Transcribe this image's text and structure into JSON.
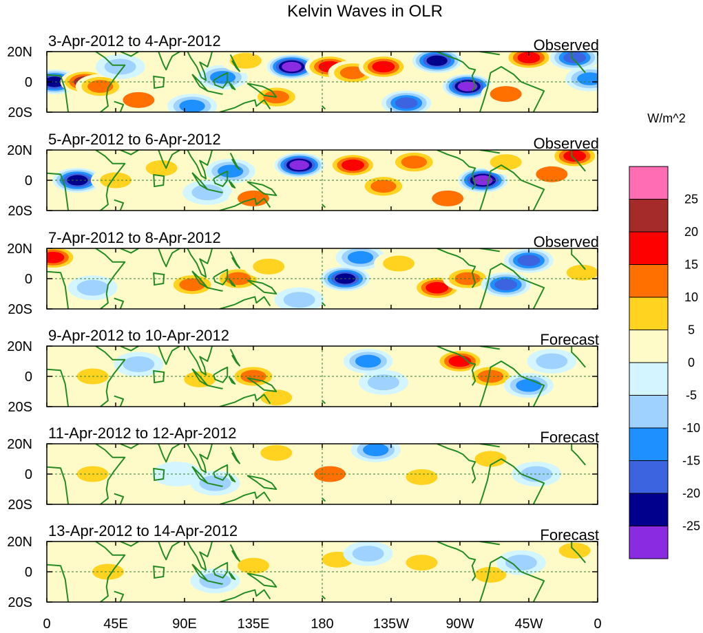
{
  "chart_data": {
    "type": "heatmap",
    "title": "Kelvin Waves in OLR",
    "units_label": "W/m^2",
    "colorbar": {
      "tick_labels": [
        "25",
        "20",
        "15",
        "10",
        "5",
        "0",
        "-5",
        "-10",
        "-15",
        "-20",
        "-25"
      ],
      "colors_top_to_bottom": [
        "#ff6eb4",
        "#a52a2a",
        "#ff0000",
        "#ff7000",
        "#ffd31f",
        "#fffbc8",
        "#d2f5ff",
        "#a0d2ff",
        "#1e90ff",
        "#3c64e1",
        "#00008c",
        "#8a2be2"
      ]
    },
    "x_ticks": [
      "0",
      "45E",
      "90E",
      "135E",
      "180",
      "135W",
      "90W",
      "45W",
      "0"
    ],
    "y_ticks": [
      "20N",
      "0",
      "20S"
    ],
    "longitude_range": [
      0,
      360
    ],
    "latitude_range": [
      -20,
      20
    ],
    "coast_color": "#228b22",
    "panels": [
      {
        "date_range": "3-Apr-2012 to 4-Apr-2012",
        "label": "Observed",
        "features": [
          {
            "lon": 5,
            "lat": 0,
            "value": -22
          },
          {
            "lon": 25,
            "lat": 0,
            "value": 20
          },
          {
            "lon": 35,
            "lat": -3,
            "value": 12
          },
          {
            "lon": 48,
            "lat": 10,
            "value": -8
          },
          {
            "lon": 60,
            "lat": -12,
            "value": 10
          },
          {
            "lon": 95,
            "lat": -16,
            "value": -12
          },
          {
            "lon": 115,
            "lat": 3,
            "value": -12
          },
          {
            "lon": 130,
            "lat": 14,
            "value": 8
          },
          {
            "lon": 150,
            "lat": -10,
            "value": 14
          },
          {
            "lon": 160,
            "lat": 10,
            "value": -26
          },
          {
            "lon": 185,
            "lat": 10,
            "value": 18
          },
          {
            "lon": 200,
            "lat": 6,
            "value": 12
          },
          {
            "lon": 220,
            "lat": 10,
            "value": 16
          },
          {
            "lon": 235,
            "lat": -14,
            "value": -18
          },
          {
            "lon": 255,
            "lat": 14,
            "value": -22
          },
          {
            "lon": 275,
            "lat": -3,
            "value": -26
          },
          {
            "lon": 300,
            "lat": -8,
            "value": 10
          },
          {
            "lon": 315,
            "lat": 16,
            "value": 16
          },
          {
            "lon": 345,
            "lat": 16,
            "value": -18
          },
          {
            "lon": 355,
            "lat": 2,
            "value": -14
          }
        ]
      },
      {
        "date_range": "5-Apr-2012 to 6-Apr-2012",
        "label": "Observed",
        "features": [
          {
            "lon": 20,
            "lat": 0,
            "value": -24
          },
          {
            "lon": 45,
            "lat": 0,
            "value": 8
          },
          {
            "lon": 75,
            "lat": 8,
            "value": 7
          },
          {
            "lon": 105,
            "lat": -8,
            "value": -6
          },
          {
            "lon": 120,
            "lat": 6,
            "value": -12
          },
          {
            "lon": 135,
            "lat": -12,
            "value": 10
          },
          {
            "lon": 165,
            "lat": 10,
            "value": -26
          },
          {
            "lon": 200,
            "lat": 10,
            "value": 16
          },
          {
            "lon": 220,
            "lat": -4,
            "value": 12
          },
          {
            "lon": 240,
            "lat": 12,
            "value": 14
          },
          {
            "lon": 262,
            "lat": -12,
            "value": 10
          },
          {
            "lon": 285,
            "lat": 0,
            "value": -26
          },
          {
            "lon": 300,
            "lat": 12,
            "value": 8
          },
          {
            "lon": 330,
            "lat": 4,
            "value": 10
          },
          {
            "lon": 345,
            "lat": 16,
            "value": 16
          }
        ]
      },
      {
        "date_range": "7-Apr-2012 to 8-Apr-2012",
        "label": "Observed",
        "features": [
          {
            "lon": 4,
            "lat": 14,
            "value": 16
          },
          {
            "lon": 30,
            "lat": -6,
            "value": -8
          },
          {
            "lon": 95,
            "lat": -4,
            "value": 12
          },
          {
            "lon": 125,
            "lat": 0,
            "value": 14
          },
          {
            "lon": 145,
            "lat": 8,
            "value": 8
          },
          {
            "lon": 165,
            "lat": -14,
            "value": -10
          },
          {
            "lon": 195,
            "lat": 0,
            "value": -22
          },
          {
            "lon": 205,
            "lat": 14,
            "value": -14
          },
          {
            "lon": 230,
            "lat": 10,
            "value": 8
          },
          {
            "lon": 255,
            "lat": -6,
            "value": 16
          },
          {
            "lon": 275,
            "lat": 0,
            "value": 14
          },
          {
            "lon": 300,
            "lat": -4,
            "value": -18
          },
          {
            "lon": 315,
            "lat": 12,
            "value": -20
          },
          {
            "lon": 350,
            "lat": 4,
            "value": 8
          }
        ]
      },
      {
        "date_range": "9-Apr-2012 to 10-Apr-2012",
        "label": "Forecast",
        "features": [
          {
            "lon": 30,
            "lat": 0,
            "value": 6
          },
          {
            "lon": 60,
            "lat": 8,
            "value": -6
          },
          {
            "lon": 100,
            "lat": -2,
            "value": 6
          },
          {
            "lon": 135,
            "lat": 0,
            "value": 12
          },
          {
            "lon": 150,
            "lat": -14,
            "value": 8
          },
          {
            "lon": 210,
            "lat": 10,
            "value": -12
          },
          {
            "lon": 220,
            "lat": -4,
            "value": -8
          },
          {
            "lon": 270,
            "lat": 10,
            "value": 18
          },
          {
            "lon": 290,
            "lat": 0,
            "value": 12
          },
          {
            "lon": 315,
            "lat": -6,
            "value": -12
          },
          {
            "lon": 330,
            "lat": 10,
            "value": -8
          }
        ]
      },
      {
        "date_range": "11-Apr-2012 to 12-Apr-2012",
        "label": "Forecast",
        "features": [
          {
            "lon": 30,
            "lat": 0,
            "value": 6
          },
          {
            "lon": 85,
            "lat": 0,
            "value": -4
          },
          {
            "lon": 110,
            "lat": -6,
            "value": -7
          },
          {
            "lon": 150,
            "lat": 14,
            "value": 7
          },
          {
            "lon": 185,
            "lat": 0,
            "value": 10
          },
          {
            "lon": 215,
            "lat": 16,
            "value": -12
          },
          {
            "lon": 245,
            "lat": -2,
            "value": 7
          },
          {
            "lon": 290,
            "lat": 10,
            "value": 7
          },
          {
            "lon": 320,
            "lat": 0,
            "value": -10
          }
        ]
      },
      {
        "date_range": "13-Apr-2012 to 14-Apr-2012",
        "label": "Forecast",
        "features": [
          {
            "lon": 40,
            "lat": 0,
            "value": 7
          },
          {
            "lon": 110,
            "lat": -6,
            "value": -6
          },
          {
            "lon": 135,
            "lat": 4,
            "value": 7
          },
          {
            "lon": 190,
            "lat": 8,
            "value": 6
          },
          {
            "lon": 210,
            "lat": 12,
            "value": -6
          },
          {
            "lon": 245,
            "lat": 6,
            "value": 7
          },
          {
            "lon": 290,
            "lat": -2,
            "value": 7
          },
          {
            "lon": 310,
            "lat": 6,
            "value": -7
          },
          {
            "lon": 345,
            "lat": 14,
            "value": 8
          }
        ]
      }
    ]
  }
}
